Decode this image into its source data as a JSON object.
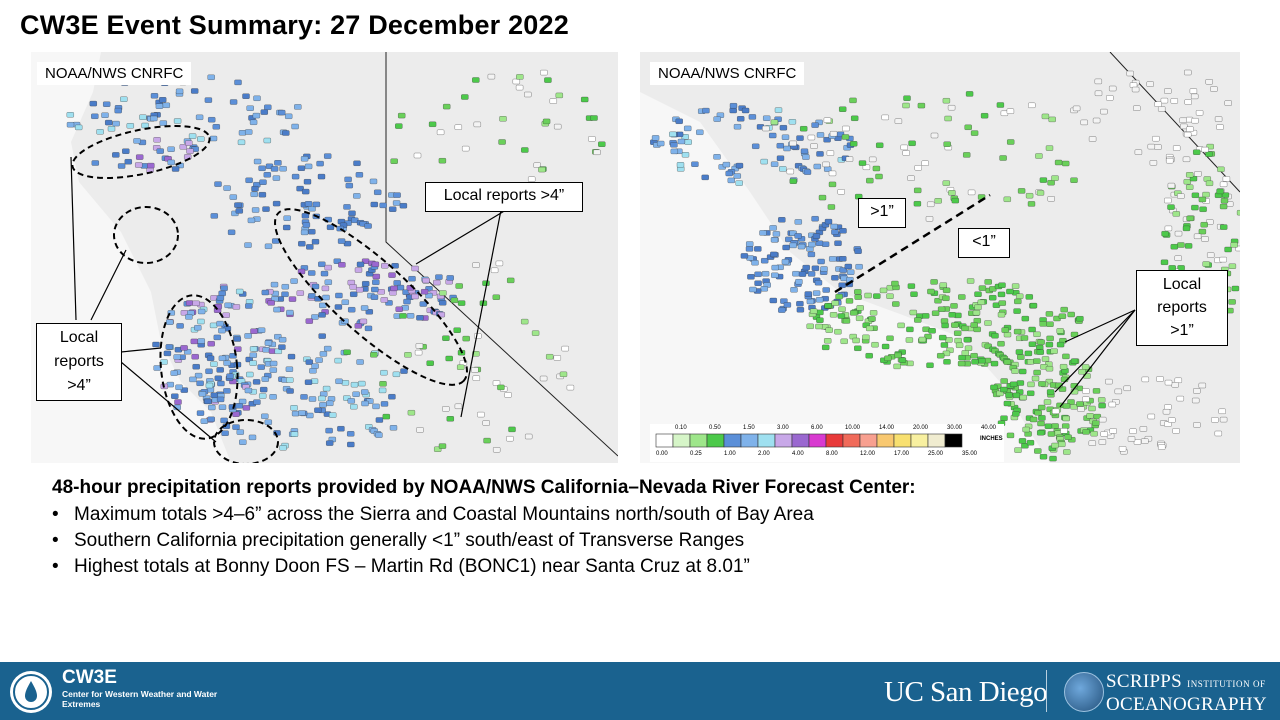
{
  "slide": {
    "title": "CW3E Event Summary: 27 December 2022"
  },
  "left_map": {
    "source_label": "NOAA/NWS CNRFC",
    "callouts": {
      "local_reports_top": "Local reports >4”",
      "local_reports_left": "Local\nreports\n>4”"
    }
  },
  "right_map": {
    "source_label": "NOAA/NWS CNRFC",
    "callouts": {
      "gt1": ">1”",
      "lt1": "<1”",
      "local_reports": "Local\nreports\n>1”"
    },
    "legend": {
      "unit": "INCHES",
      "top_values": [
        "0.10",
        "0.50",
        "1.50",
        "3.00",
        "6.00",
        "10.00",
        "14.00",
        "20.00",
        "30.00",
        "40.00"
      ],
      "bottom_values": [
        "0.00",
        "0.25",
        "1.00",
        "2.00",
        "4.00",
        "8.00",
        "12.00",
        "17.00",
        "25.00",
        "35.00"
      ],
      "colors": [
        "#ffffff",
        "#d6f5c8",
        "#9ee68a",
        "#4cc94a",
        "#5b8fd8",
        "#7fb2ea",
        "#9fe0f0",
        "#c8a8e8",
        "#9a68d0",
        "#d83ad0",
        "#e83a3a",
        "#f06a5a",
        "#f8a090",
        "#f8c870",
        "#f8e070",
        "#f8f0a0",
        "#f0ecd0",
        "#000000"
      ]
    }
  },
  "summary": {
    "heading": "48-hour precipitation reports provided by NOAA/NWS California–Nevada River Forecast Center:",
    "bullets": [
      "Maximum totals >4–6” across the Sierra and Coastal Mountains north/south of Bay Area",
      "Southern California precipitation generally <1” south/east of Transverse Ranges",
      "Highest totals at Bonny Doon FS – Martin Rd (BONC1) near Santa Cruz at 8.01”"
    ]
  },
  "footer": {
    "cw3e_name": "CW3E",
    "cw3e_subtitle": "Center for Western Weather and Water Extremes",
    "ucsd": "UC San Diego",
    "scripps_top": "SCRIPPS",
    "scripps_institution": "INSTITUTION OF",
    "scripps_bottom": "OCEANOGRAPHY",
    "colors": {
      "band": "#1a628f",
      "text": "#ffffff"
    }
  }
}
